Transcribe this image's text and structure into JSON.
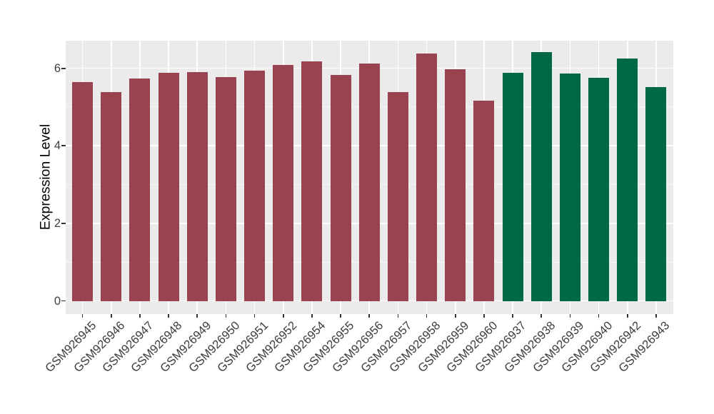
{
  "figure": {
    "background": "#FFFFFF",
    "panel_background": "#EBEBEB",
    "grid_major_color": "#FFFFFF",
    "grid_minor_color": "#FFFFFF",
    "tick_mark_color": "#333333",
    "axis_text_color": "#404040",
    "axis_title_color": "#000000"
  },
  "chart_data": {
    "type": "bar",
    "title": "",
    "xlabel": "",
    "ylabel": "Expression Level",
    "ylim": [
      -0.33,
      6.72
    ],
    "yticks": [
      0,
      2,
      4,
      6
    ],
    "yticks_minor": [
      1,
      3,
      5
    ],
    "grid": "on",
    "legend": "none",
    "x_label_rotation_deg": 45,
    "categories": [
      "GSM926945",
      "GSM926946",
      "GSM926947",
      "GSM926948",
      "GSM926949",
      "GSM926950",
      "GSM926951",
      "GSM926952",
      "GSM926954",
      "GSM926955",
      "GSM926956",
      "GSM926957",
      "GSM926958",
      "GSM926959",
      "GSM926960",
      "GSM926937",
      "GSM926938",
      "GSM926939",
      "GSM926940",
      "GSM926942",
      "GSM926943"
    ],
    "values": [
      5.64,
      5.38,
      5.74,
      5.89,
      5.9,
      5.78,
      5.93,
      6.08,
      6.17,
      5.82,
      6.13,
      5.39,
      6.38,
      5.98,
      5.16,
      5.89,
      6.41,
      5.87,
      5.75,
      6.25,
      5.52
    ],
    "groups": [
      "red",
      "red",
      "red",
      "red",
      "red",
      "red",
      "red",
      "red",
      "red",
      "red",
      "red",
      "red",
      "red",
      "red",
      "red",
      "green",
      "green",
      "green",
      "green",
      "green",
      "green"
    ],
    "group_colors": {
      "red": "#9A4350",
      "green": "#016846"
    }
  }
}
